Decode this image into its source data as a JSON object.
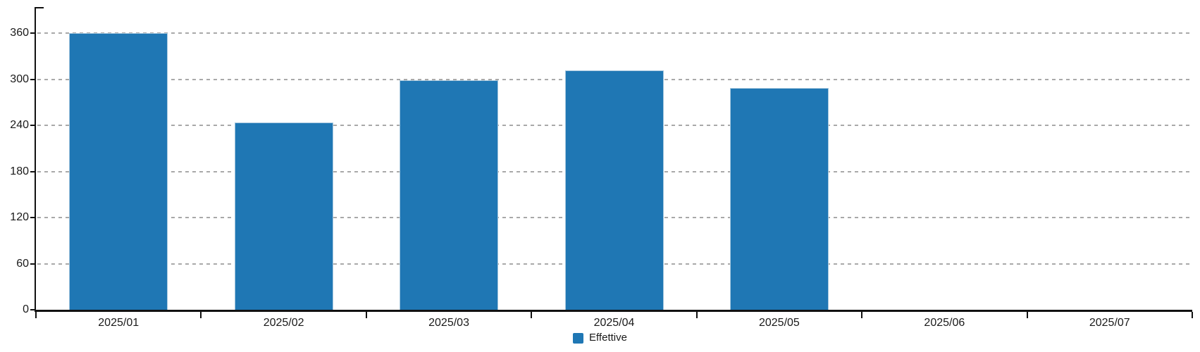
{
  "chart_data": {
    "type": "bar",
    "title": "",
    "categories": [
      "2025/01",
      "2025/02",
      "2025/03",
      "2025/04",
      "2025/05",
      "2025/06",
      "2025/07"
    ],
    "series": [
      {
        "name": "Effettive",
        "color": "#1F77B4",
        "values": [
          360,
          244,
          299,
          311,
          289,
          0,
          0
        ]
      }
    ],
    "xlabel": "",
    "ylabel": "",
    "ylim": [
      0,
      395
    ],
    "yticks": [
      0,
      60,
      120,
      180,
      240,
      300,
      360
    ],
    "grid": "horizontal-dashed",
    "legend_position": "bottom-center"
  },
  "legend": {
    "items": [
      {
        "label": "Effettive",
        "color": "#1F77B4"
      }
    ]
  },
  "colors": {
    "bar_fill": "#1F77B4",
    "bar_border": "#A5C7DE",
    "axis": "#111111",
    "gridline": "#A9A9A9",
    "text": "#1A1A1A",
    "background": "#FFFFFF"
  }
}
